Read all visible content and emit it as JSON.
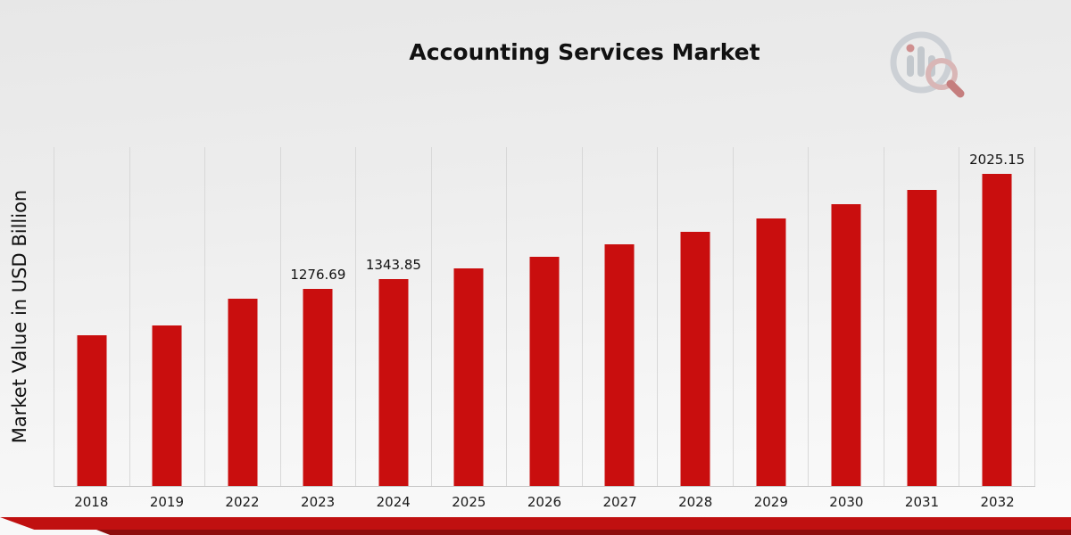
{
  "chart_data": {
    "type": "bar",
    "title": "Accounting Services Market",
    "ylabel": "Market Value in USD Billion",
    "xlabel": "",
    "categories": [
      "2018",
      "2019",
      "2022",
      "2023",
      "2024",
      "2025",
      "2026",
      "2027",
      "2028",
      "2029",
      "2030",
      "2031",
      "2032"
    ],
    "values": [
      977,
      1040,
      1213,
      1276.69,
      1343.85,
      1414.5,
      1488.9,
      1567.2,
      1649.7,
      1736.4,
      1827.8,
      1923.9,
      2025.15
    ],
    "data_labels": [
      "",
      "",
      "",
      "1276.69",
      "1343.85",
      "",
      "",
      "",
      "",
      "",
      "",
      "",
      "2025.15"
    ],
    "ylim": [
      0,
      2200
    ],
    "bar_color": "#c90e0e",
    "grid": "vertical-only",
    "legend": "none"
  },
  "colors": {
    "bar": "#c90e0e",
    "ribbon_main": "#c01010",
    "ribbon_dark": "#8e0d0d",
    "gridline": "#d8d8d8",
    "background_top": "#e7e7e7",
    "background_bottom": "#fbfbfb"
  },
  "logo": {
    "name": "market-research-chart-logo"
  }
}
